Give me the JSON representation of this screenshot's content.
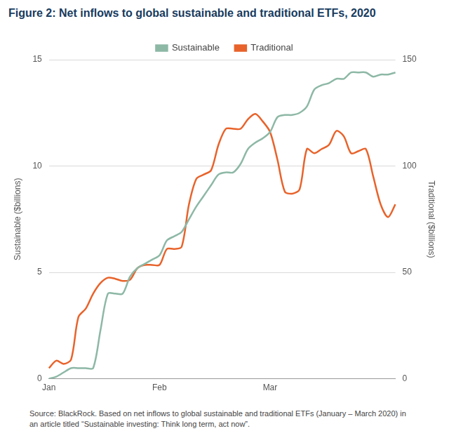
{
  "chart_data": {
    "type": "line",
    "title": "Figure 2: Net inflows to global sustainable and traditional ETFs, 2020",
    "source": "Source: BlackRock. Based on net inflows to global sustainable and traditional ETFs (January – March 2020) in an article titled “Sustainable investing: Think long term, act now”.",
    "categories": [
      "Jan",
      null,
      null,
      null,
      null,
      null,
      null,
      null,
      null,
      null,
      null,
      null,
      null,
      null,
      null,
      "Feb",
      null,
      null,
      null,
      null,
      null,
      null,
      null,
      null,
      null,
      null,
      null,
      null,
      null,
      null,
      "Mar",
      null,
      null,
      null,
      null,
      null,
      null,
      null,
      null,
      null,
      null,
      null,
      null,
      null,
      null,
      null,
      null,
      null
    ],
    "series": [
      {
        "name": "Sustainable",
        "color": "#8db8a6",
        "values": [
          0,
          0.1,
          0.3,
          0.5,
          0.5,
          0.5,
          0.5,
          2.3,
          4.0,
          4.0,
          4.0,
          4.8,
          5.2,
          5.4,
          5.6,
          5.8,
          6.5,
          6.7,
          6.9,
          7.5,
          8.1,
          8.6,
          9.1,
          9.6,
          9.7,
          9.7,
          10.1,
          10.8,
          11.1,
          11.3,
          11.6,
          12.3,
          12.4,
          12.4,
          12.5,
          12.8,
          13.6,
          13.8,
          13.9,
          14.1,
          14.1,
          14.4,
          14.4,
          14.4,
          14.2,
          14.3,
          14.3,
          14.4
        ]
      },
      {
        "name": "Traditional",
        "color": "#e8632b",
        "axis": "y2",
        "values": [
          5,
          8.5,
          7,
          9,
          29,
          33,
          40,
          45,
          47.5,
          47,
          46,
          46.5,
          52,
          53.5,
          53.5,
          53.5,
          61,
          61,
          62,
          82,
          94,
          96,
          98,
          110,
          117.5,
          117.5,
          117.5,
          122,
          124.5,
          121,
          116,
          103,
          88,
          87,
          89,
          108,
          106,
          108,
          110,
          116.5,
          114,
          106,
          107,
          108,
          95,
          82,
          76,
          82
        ]
      }
    ],
    "y_label": "Sustainable ($billions)",
    "y2_label": "Traditional ($billions)",
    "ylim": [
      0,
      15
    ],
    "yticks": [
      0,
      5,
      10,
      15
    ],
    "y2lim": [
      0,
      150
    ],
    "y2ticks": [
      0,
      50,
      100,
      150
    ],
    "grid": true,
    "legend": "top"
  }
}
